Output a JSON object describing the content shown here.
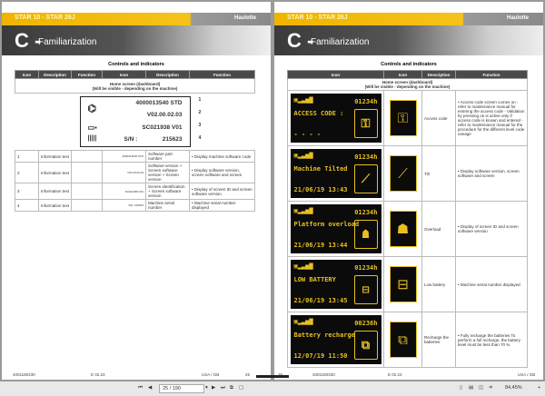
{
  "doc": {
    "series": "STAR 10 - STAR 26J",
    "brand": "Haulotte",
    "chapter_letter": "C -",
    "chapter": "Familiarization",
    "section": "Controls and indicators",
    "headers": [
      "Icon",
      "Description",
      "Function",
      "Icon",
      "Description",
      "Function"
    ],
    "home_title": "Home screen (dashboard)",
    "home_sub": "(Will be visible - depending on the machine)"
  },
  "left": {
    "diagram": {
      "l1": "4000013540 STD",
      "l2": "V02.00.02.03",
      "l3": "SC021938 V01",
      "l4": "S/N :",
      "l4v": "215623",
      "callouts": [
        "1",
        "2",
        "3",
        "4"
      ]
    },
    "rows": [
      {
        "n": "1",
        "desc": "Information text",
        "mini": "4000013540 STD",
        "d2": "Software part number",
        "fn": "• Display machine software code"
      },
      {
        "n": "2",
        "desc": "Information text",
        "mini": "V02.00.02.03",
        "d2": "Software version + Screen software version + Screen version",
        "fn": "• Display software version, screen software and screen"
      },
      {
        "n": "3",
        "desc": "Information text",
        "mini": "SC021938 V01",
        "d2": "Screen identification + Screen software version",
        "fn": "• Display of screen ID and screen software version"
      },
      {
        "n": "4",
        "desc": "Information text",
        "mini": "S/N: 215623",
        "d2": "Machine serial number",
        "fn": "• Machine serial number displayed"
      }
    ],
    "footer": {
      "code": "4001180330",
      "ed": "E 02.23",
      "lang": "USA / GB",
      "page": "25"
    }
  },
  "right": {
    "rows": [
      {
        "hours": "01234h",
        "msg": "ACCESS CODE :",
        "date": "- - - -",
        "icon": "padlock-icon",
        "desc": "Access code",
        "fn": "• Access code screen comes on - refer to maintenance manual for entering the access code - Validation by pressing on is active only if access code is known and entered - refer to maintenance manual for the procedure for the different level code useage"
      },
      {
        "hours": "01234h",
        "msg": "Machine Tilted",
        "date": "21/06/19 13:43",
        "icon": "tilt-icon",
        "desc": "Tilt",
        "fn": "• Display software version, screen software and screen"
      },
      {
        "hours": "01234h",
        "msg": "Platform overload",
        "date": "21/06/19 13:44",
        "icon": "overload-icon",
        "desc": "Overload",
        "fn": "• Display of screen ID and screen software version"
      },
      {
        "hours": "01234h",
        "msg": "LOW BATTERY",
        "date": "21/06/19 13:45",
        "icon": "low-battery-icon",
        "desc": "Low battery",
        "fn": "• Machine serial number displayed"
      },
      {
        "hours": "00236h",
        "msg": "Battery recharge",
        "date": "12/07/19 11:50",
        "icon": "battery-recharge-icon",
        "desc": "Recharge the batteries",
        "fn": "• Fully recharge the batteries To perform a full recharge, the battery level must be less than 70 %."
      }
    ],
    "footer": {
      "code": "4001180330",
      "ed": "E 02.23",
      "lang": "USA / GB",
      "page": "26"
    }
  },
  "toolbar": {
    "page": "25 / 190",
    "zoom": "84,45%"
  },
  "colors": {
    "accent": "#f0b400",
    "screen_text": "#e8c020"
  }
}
